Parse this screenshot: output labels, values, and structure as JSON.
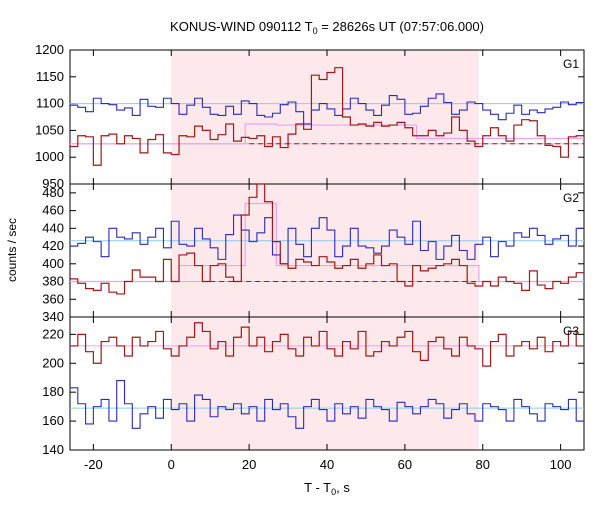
{
  "figure": {
    "title_main": "KONUS-WIND 090112 T",
    "title_sub": "0",
    "title_rest": " = 28626s UT (07:57:06.000)",
    "ylabel": "counts / sec",
    "xlabel_main": "T - T",
    "xlabel_sub": "0",
    "xlabel_rest": ", s"
  },
  "colors": {
    "blue": "#2b2bb8",
    "red": "#a01818",
    "pink": "#f0a0f0",
    "cyan": "#88ccf0",
    "shade": "#fde8ec"
  },
  "chart_data": {
    "type": "line",
    "shared_x": {
      "range": [
        -26,
        106
      ],
      "ticks": [
        -20,
        0,
        20,
        40,
        60,
        80,
        100
      ],
      "tick_labels": [
        "-20",
        "0",
        "20",
        "40",
        "60",
        "80",
        "100"
      ],
      "shaded_interval": [
        0,
        79
      ]
    },
    "panels": [
      {
        "label": "G1",
        "ylim": [
          950,
          1200
        ],
        "yticks": [
          950,
          1000,
          1050,
          1100,
          1150,
          1200
        ],
        "ytick_labels": [
          "950",
          "1000",
          "1050",
          "1100",
          "1150",
          "1200"
        ],
        "background_levels": [
          {
            "color": "cyan",
            "value": 1100,
            "style": "solid"
          },
          {
            "color": "pink",
            "value": 1025,
            "style": "solid"
          },
          {
            "color": "red",
            "value": 1025,
            "style": "dashed",
            "x_from": 20
          }
        ],
        "pink_steps": [
          [
            -26,
            1025
          ],
          [
            19,
            1062
          ],
          [
            27,
            1060
          ],
          [
            63,
            1035
          ],
          [
            79,
            1035
          ],
          [
            106,
            1035
          ]
        ],
        "blue": {
          "x0": -26,
          "dx": 2,
          "values": [
            1097,
            1093,
            1085,
            1110,
            1100,
            1098,
            1088,
            1092,
            1078,
            1108,
            1095,
            1093,
            1110,
            1100,
            1080,
            1097,
            1110,
            1093,
            1080,
            1078,
            1095,
            1080,
            1105,
            1100,
            1078,
            1075,
            1082,
            1098,
            1103,
            1085,
            1062,
            1088,
            1100,
            1090,
            1078,
            1090,
            1110,
            1100,
            1088,
            1078,
            1097,
            1115,
            1108,
            1080,
            1082,
            1095,
            1110,
            1118,
            1102,
            1080,
            1088,
            1103,
            1100,
            1088,
            1080,
            1070,
            1082,
            1097,
            1080,
            1088,
            1083,
            1090,
            1093,
            1103,
            1098,
            1102
          ]
        },
        "red": {
          "x0": -26,
          "dx": 2,
          "values": [
            1020,
            1040,
            1038,
            985,
            1040,
            1043,
            1025,
            1040,
            1035,
            1008,
            1033,
            1042,
            1008,
            1005,
            1040,
            1038,
            1058,
            1050,
            1033,
            1042,
            1062,
            1030,
            1037,
            1035,
            1040,
            1020,
            1038,
            1018,
            1043,
            1062,
            1052,
            1153,
            1145,
            1158,
            1167,
            1075,
            1060,
            1062,
            1058,
            1065,
            1058,
            1060,
            1065,
            1055,
            1040,
            1040,
            1050,
            1040,
            1045,
            1075,
            1050,
            1030,
            1020,
            1040,
            1055,
            1040,
            1030,
            1060,
            1070,
            1068,
            1040,
            1022,
            1020,
            1000,
            1038,
            1040
          ]
        }
      },
      {
        "label": "G2",
        "ylim": [
          340,
          490
        ],
        "yticks": [
          340,
          360,
          380,
          400,
          420,
          440,
          460,
          480
        ],
        "ytick_labels": [
          "340",
          "360",
          "380",
          "400",
          "420",
          "440",
          "460",
          "480"
        ],
        "background_levels": [
          {
            "color": "cyan",
            "value": 426,
            "style": "solid"
          },
          {
            "color": "pink",
            "value": 380,
            "style": "solid"
          },
          {
            "color": "red",
            "value": 380,
            "style": "dashed",
            "x_from": 10
          }
        ],
        "pink_steps": [
          [
            -26,
            380
          ],
          [
            2,
            398
          ],
          [
            17,
            398
          ],
          [
            19,
            468
          ],
          [
            27,
            468
          ],
          [
            27,
            398
          ],
          [
            79,
            398
          ],
          [
            79,
            380
          ],
          [
            106,
            380
          ]
        ],
        "blue": {
          "x0": -26,
          "dx": 2,
          "values": [
            420,
            423,
            430,
            425,
            408,
            440,
            430,
            428,
            435,
            422,
            430,
            440,
            418,
            448,
            422,
            420,
            440,
            428,
            418,
            405,
            433,
            455,
            438,
            425,
            435,
            452,
            410,
            400,
            440,
            422,
            408,
            440,
            452,
            438,
            408,
            420,
            440,
            420,
            418,
            412,
            420,
            438,
            430,
            422,
            448,
            415,
            425,
            405,
            420,
            432,
            415,
            405,
            422,
            430,
            408,
            425,
            420,
            435,
            430,
            440,
            432,
            422,
            428,
            432,
            420,
            440
          ]
        },
        "red": {
          "x0": -26,
          "dx": 2,
          "values": [
            383,
            378,
            372,
            370,
            378,
            368,
            366,
            380,
            393,
            385,
            385,
            380,
            405,
            380,
            410,
            412,
            398,
            380,
            398,
            400,
            385,
            380,
            455,
            475,
            490,
            470,
            425,
            400,
            395,
            405,
            402,
            398,
            408,
            402,
            395,
            398,
            405,
            395,
            400,
            410,
            398,
            400,
            380,
            375,
            398,
            392,
            395,
            398,
            400,
            405,
            398,
            378,
            375,
            380,
            375,
            385,
            380,
            378,
            370,
            392,
            376,
            372,
            380,
            378,
            385,
            390
          ]
        }
      },
      {
        "label": "G3",
        "ylim": [
          140,
          232
        ],
        "yticks": [
          140,
          160,
          180,
          200,
          220
        ],
        "ytick_labels": [
          "140",
          "160",
          "180",
          "200",
          "220"
        ],
        "background_levels": [
          {
            "color": "cyan",
            "value": 169,
            "style": "solid"
          },
          {
            "color": "pink",
            "value": 212,
            "style": "solid"
          }
        ],
        "blue": {
          "x0": -26,
          "dx": 2,
          "values": [
            183,
            172,
            158,
            170,
            175,
            160,
            188,
            172,
            155,
            165,
            170,
            162,
            175,
            168,
            172,
            160,
            178,
            175,
            163,
            170,
            168,
            172,
            165,
            170,
            160,
            175,
            168,
            172,
            163,
            155,
            170,
            175,
            168,
            160,
            172,
            165,
            170,
            162,
            175,
            170,
            168,
            160,
            173,
            170,
            165,
            170,
            175,
            172,
            162,
            168,
            172,
            165,
            160,
            172,
            170,
            168,
            160,
            175,
            170,
            165,
            160,
            172,
            170,
            168,
            175,
            160
          ]
        },
        "red": {
          "x0": -26,
          "dx": 2,
          "values": [
            212,
            220,
            208,
            200,
            215,
            218,
            212,
            205,
            218,
            212,
            215,
            222,
            210,
            205,
            212,
            218,
            228,
            222,
            210,
            215,
            205,
            218,
            225,
            212,
            218,
            208,
            215,
            220,
            210,
            205,
            218,
            212,
            222,
            210,
            205,
            215,
            210,
            222,
            205,
            208,
            215,
            212,
            218,
            222,
            208,
            202,
            215,
            218,
            210,
            205,
            218,
            212,
            210,
            198,
            215,
            220,
            205,
            212,
            215,
            210,
            218,
            208,
            215,
            212,
            222,
            212
          ]
        }
      }
    ]
  }
}
